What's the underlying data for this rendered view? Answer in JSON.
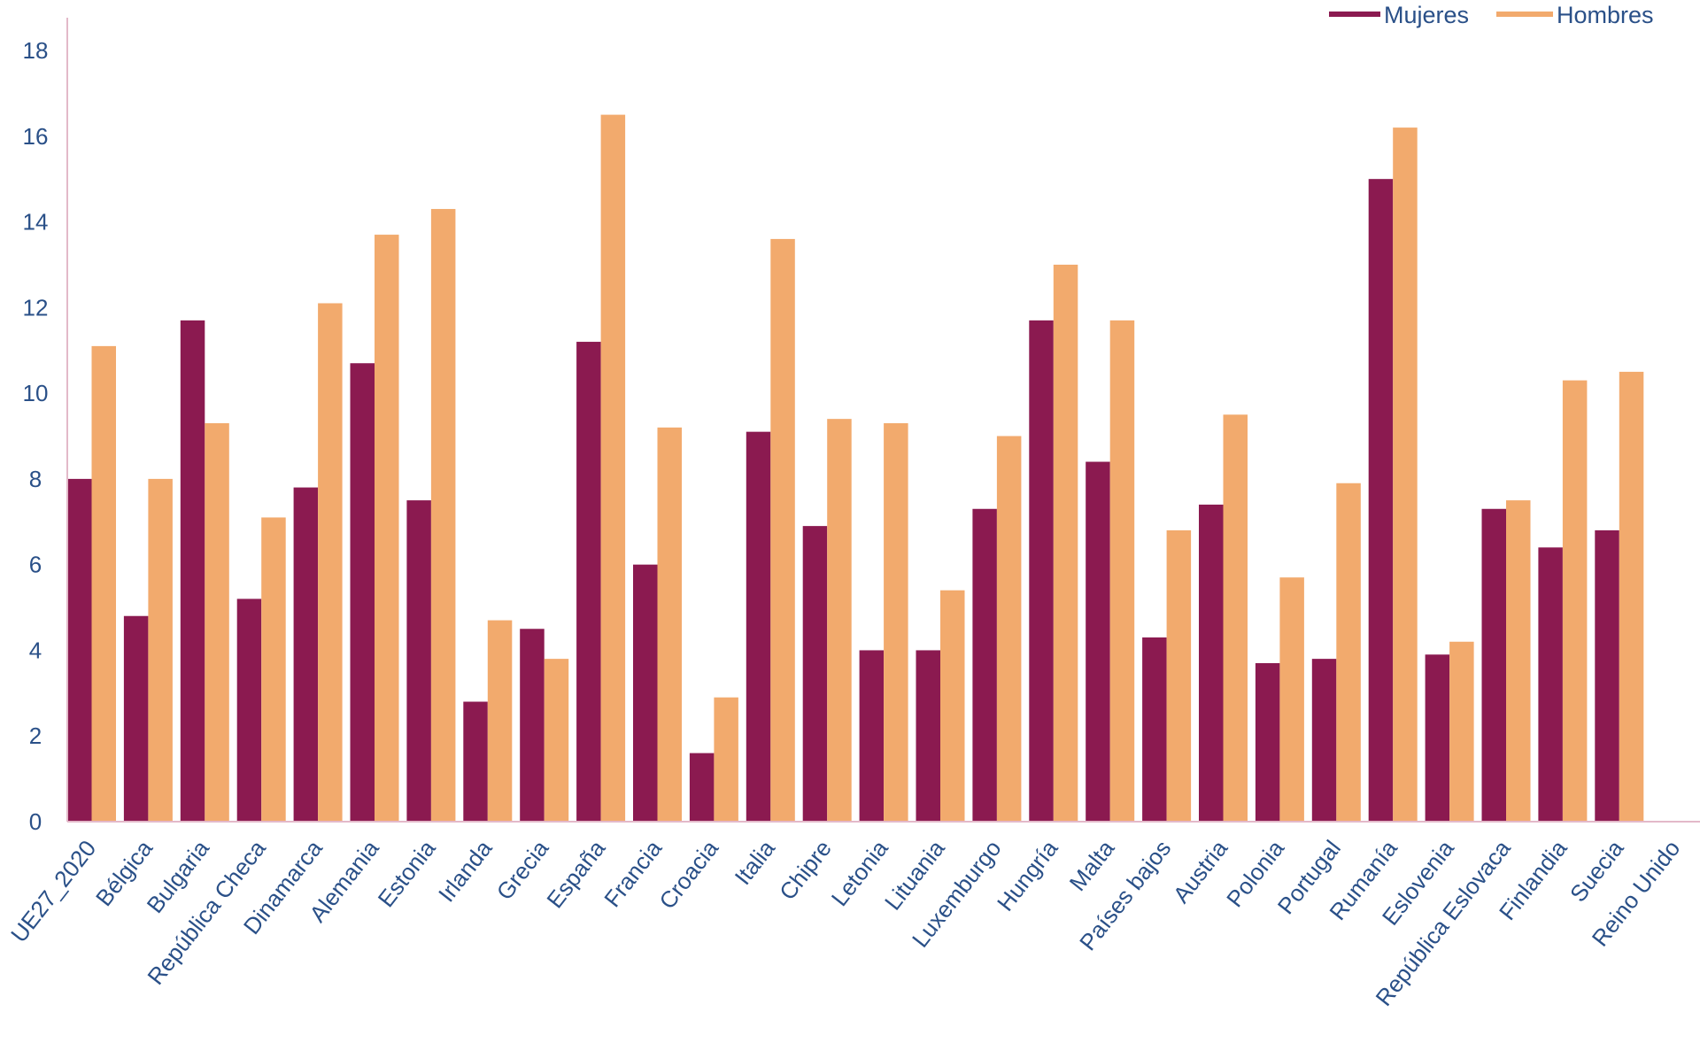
{
  "chart_data": {
    "type": "bar",
    "title": "",
    "xlabel": "",
    "ylabel": "",
    "ylim": [
      0,
      18
    ],
    "yticks": [
      0,
      2,
      4,
      6,
      8,
      10,
      12,
      14,
      16,
      18
    ],
    "grid": false,
    "legend_position": "top-right",
    "categories": [
      "UE27_2020",
      "Bélgica",
      "Bulgaria",
      "República Checa",
      "Dinamarca",
      "Alemania",
      "Estonia",
      "Irlanda",
      "Grecia",
      "España",
      "Francia",
      "Croacia",
      "Italia",
      "Chipre",
      "Letonia",
      "Lituania",
      "Luxemburgo",
      "Hungría",
      "Malta",
      "Países bajos",
      "Austria",
      "Polonia",
      "Portugal",
      "Rumanía",
      "Eslovenia",
      "República Eslovaca",
      "Finlandia",
      "Suecia",
      "Reino Unido"
    ],
    "series": [
      {
        "name": "Mujeres",
        "color": "#8b1a50",
        "values": [
          8.0,
          4.8,
          11.7,
          5.2,
          7.8,
          10.7,
          7.5,
          2.8,
          4.5,
          11.2,
          6.0,
          1.6,
          9.1,
          6.9,
          4.0,
          4.0,
          7.3,
          11.7,
          8.4,
          4.3,
          7.4,
          3.7,
          3.8,
          15.0,
          3.9,
          7.3,
          6.4,
          6.8,
          null
        ]
      },
      {
        "name": "Hombres",
        "color": "#f2aa6d",
        "values": [
          11.1,
          8.0,
          9.3,
          7.1,
          12.1,
          13.7,
          14.3,
          4.7,
          3.8,
          16.5,
          9.2,
          2.9,
          13.6,
          9.4,
          9.3,
          5.4,
          9.0,
          13.0,
          11.7,
          6.8,
          9.5,
          5.7,
          7.9,
          16.2,
          4.2,
          7.5,
          10.3,
          10.5,
          null
        ]
      }
    ]
  },
  "colors": {
    "axis_text": "#2a5088",
    "axis_line": "#e3b9c9"
  }
}
